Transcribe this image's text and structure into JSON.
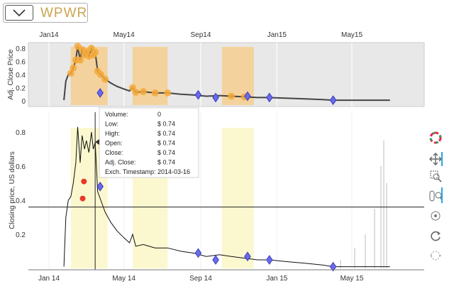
{
  "ticker": {
    "symbol": "WPWR"
  },
  "top_chart": {
    "ylabel": "Adj. Close Price",
    "yticks": [
      "0",
      "0.2",
      "0.4",
      "0.6",
      "0.8"
    ],
    "xticks": [
      "Jan14",
      "May14",
      "Sep14",
      "Jan15",
      "May15"
    ]
  },
  "bottom_chart": {
    "ylabel": "Closing price, US dollars",
    "yticks": [
      "0.2",
      "0.4",
      "0.6",
      "0.8"
    ],
    "xticks": [
      "Jan 14",
      "May 14",
      "Sep 14",
      "Jan 15",
      "May 15"
    ]
  },
  "tooltip": {
    "rows": [
      {
        "label": "Volume:",
        "value": "0"
      },
      {
        "label": "Low:",
        "value": "$ 0.74"
      },
      {
        "label": "High:",
        "value": "$ 0.74"
      },
      {
        "label": "Open:",
        "value": "$ 0.74"
      },
      {
        "label": "Close:",
        "value": "$ 0.74"
      },
      {
        "label": "Adj. Close:",
        "value": "$ 0.74"
      },
      {
        "label": "Exch. Timestamp:",
        "value": "2014-03-16"
      }
    ]
  },
  "toolbar": {
    "tools": [
      "bokeh-logo-icon",
      "pan-icon",
      "box-zoom-icon",
      "wheel-zoom-icon",
      "crosshair-icon",
      "reset-icon",
      "hover-icon"
    ]
  },
  "chart_data": {
    "type": "line",
    "x_dates": [
      "2014-01-01",
      "2014-05-01",
      "2014-09-01",
      "2015-01-01",
      "2015-05-01"
    ],
    "price_series": [
      [
        "2014-01-25",
        0.01
      ],
      [
        "2014-01-28",
        0.3
      ],
      [
        "2014-02-01",
        0.4
      ],
      [
        "2014-02-05",
        0.42
      ],
      [
        "2014-02-09",
        0.5
      ],
      [
        "2014-02-13",
        0.62
      ],
      [
        "2014-02-16",
        0.83
      ],
      [
        "2014-02-20",
        0.62
      ],
      [
        "2014-02-23",
        0.78
      ],
      [
        "2014-02-27",
        0.7
      ],
      [
        "2014-03-02",
        0.75
      ],
      [
        "2014-03-06",
        0.68
      ],
      [
        "2014-03-10",
        0.8
      ],
      [
        "2014-03-13",
        0.7
      ],
      [
        "2014-03-16",
        0.74
      ],
      [
        "2014-03-20",
        0.45
      ],
      [
        "2014-03-25",
        0.4
      ],
      [
        "2014-04-01",
        0.33
      ],
      [
        "2014-04-10",
        0.27
      ],
      [
        "2014-04-20",
        0.22
      ],
      [
        "2014-05-01",
        0.18
      ],
      [
        "2014-05-10",
        0.15
      ],
      [
        "2014-05-15",
        0.2
      ],
      [
        "2014-05-20",
        0.13
      ],
      [
        "2014-06-01",
        0.14
      ],
      [
        "2014-06-20",
        0.12
      ],
      [
        "2014-07-10",
        0.12
      ],
      [
        "2014-08-01",
        0.1
      ],
      [
        "2014-08-20",
        0.09
      ],
      [
        "2014-09-10",
        0.07
      ],
      [
        "2014-10-01",
        0.08
      ],
      [
        "2014-10-20",
        0.07
      ],
      [
        "2014-11-10",
        0.06
      ],
      [
        "2014-12-01",
        0.05
      ],
      [
        "2014-12-20",
        0.05
      ],
      [
        "2015-01-15",
        0.04
      ],
      [
        "2015-02-15",
        0.03
      ],
      [
        "2015-03-15",
        0.02
      ],
      [
        "2015-04-01",
        0.01
      ],
      [
        "2015-05-01",
        0.01
      ],
      [
        "2015-06-01",
        0.01
      ],
      [
        "2015-07-01",
        0.01
      ]
    ],
    "shaded_periods": [
      [
        "2014-02-05",
        "2014-04-05"
      ],
      [
        "2014-05-15",
        "2014-07-10"
      ],
      [
        "2014-10-05",
        "2014-11-25"
      ]
    ],
    "markers": [
      {
        "date": "2014-03-24",
        "price": 0.48,
        "kind": "diamond"
      },
      {
        "date": "2014-08-28",
        "price": 0.09,
        "kind": "diamond"
      },
      {
        "date": "2014-09-25",
        "price": 0.05,
        "kind": "diamond"
      },
      {
        "date": "2014-11-15",
        "price": 0.07,
        "kind": "diamond"
      },
      {
        "date": "2014-12-20",
        "price": 0.05,
        "kind": "diamond"
      },
      {
        "date": "2015-04-01",
        "price": 0.01,
        "kind": "diamond"
      },
      {
        "date": "2014-02-24",
        "price": 0.41,
        "kind": "red-dot"
      },
      {
        "date": "2014-02-26",
        "price": 0.51,
        "kind": "red-dot"
      }
    ],
    "crosshair_price": 0.36,
    "hover_date": "2014-03-16",
    "ylim": [
      0,
      0.9
    ]
  }
}
